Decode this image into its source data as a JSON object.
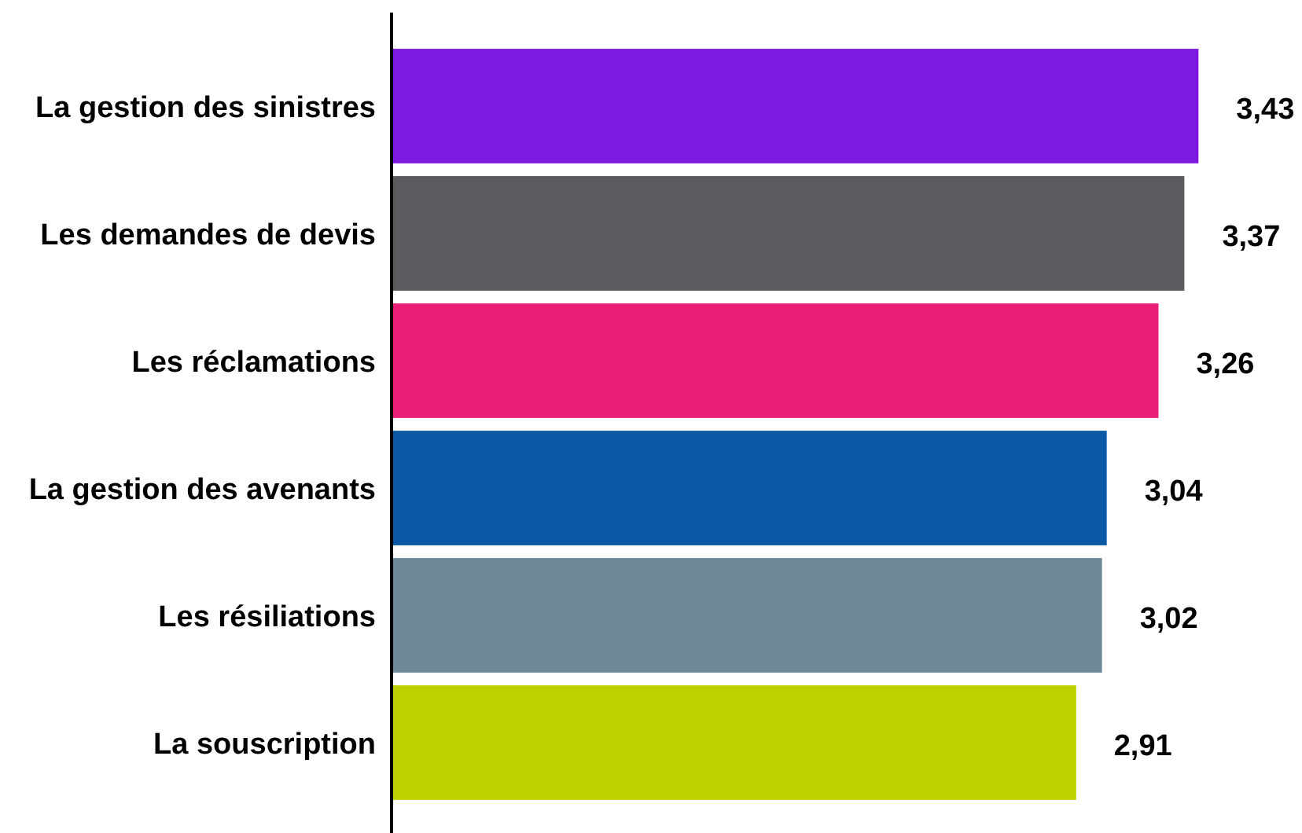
{
  "chart_data": {
    "type": "bar",
    "orientation": "horizontal",
    "categories": [
      "La gestion des sinistres",
      "Les demandes de devis",
      "Les réclamations",
      "La gestion des avenants",
      "Les résiliations",
      "La souscription"
    ],
    "values": [
      3.43,
      3.37,
      3.26,
      3.04,
      3.02,
      2.91
    ],
    "colors": [
      "#7e1ae0",
      "#5a5b5e",
      "#ec1f78",
      "#0b59a5",
      "#6e8a9a",
      "#bfd000"
    ],
    "value_labels": [
      "3,43",
      "3,37",
      "3,26",
      "3,04",
      "3,02",
      "2,91"
    ],
    "xlim": [
      0,
      3.87
    ],
    "tick_labels": "y"
  }
}
